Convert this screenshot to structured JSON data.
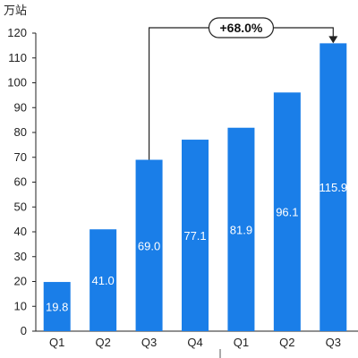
{
  "chart_data": {
    "type": "bar",
    "ylabel": "万站",
    "ylim": [
      0,
      120
    ],
    "yticks": [
      0,
      10,
      20,
      30,
      40,
      50,
      60,
      70,
      80,
      90,
      100,
      110,
      120
    ],
    "categories": [
      "Q1",
      "Q2",
      "Q3",
      "Q4",
      "Q1",
      "Q2",
      "Q3"
    ],
    "values": [
      19.8,
      41.0,
      69.0,
      77.1,
      81.9,
      96.1,
      115.9
    ],
    "data_labels": [
      "19.8",
      "41.0",
      "69.0",
      "77.1",
      "81.9",
      "96.1",
      "115.9"
    ],
    "grid": false,
    "bar_color": "#1a7ee8",
    "annotation": {
      "text": "+68.0%",
      "from_index": 2,
      "to_index": 6
    }
  }
}
